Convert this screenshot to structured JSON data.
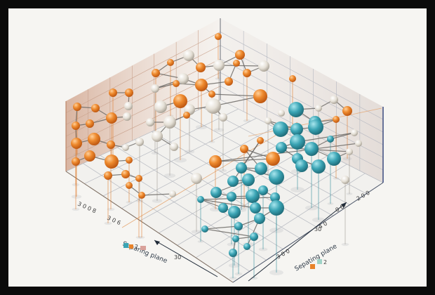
{
  "labels": {
    "left_plane": "Separing plane",
    "right_plane": "Sepating plane",
    "left_ticks_a": "3 0 0 8",
    "left_ticks_b": "3 0 6",
    "front_tick_1": "30",
    "front_tick_2": "3 0 0",
    "front_tick_3": "30",
    "right_tick_1": "0 0",
    "right_tick_2": "2 0 0",
    "right_tick_3": "4 0",
    "legend_left": "2",
    "legend_right": "2"
  },
  "colors": {
    "orange": "#e8832a",
    "orange_dark": "#c65a12",
    "white": "#eae6de",
    "teal": "#3aa4b4",
    "teal_dark": "#217a88",
    "grid": "#b9bcc2",
    "wall_left": "#d8b9a6",
    "wall_right": "#e6e2df",
    "legend_teal": "#3aa4b4",
    "legend_orange": "#e8832a",
    "legend_pink": "#d9a19a",
    "legend_mint": "#9fd3c7"
  }
}
